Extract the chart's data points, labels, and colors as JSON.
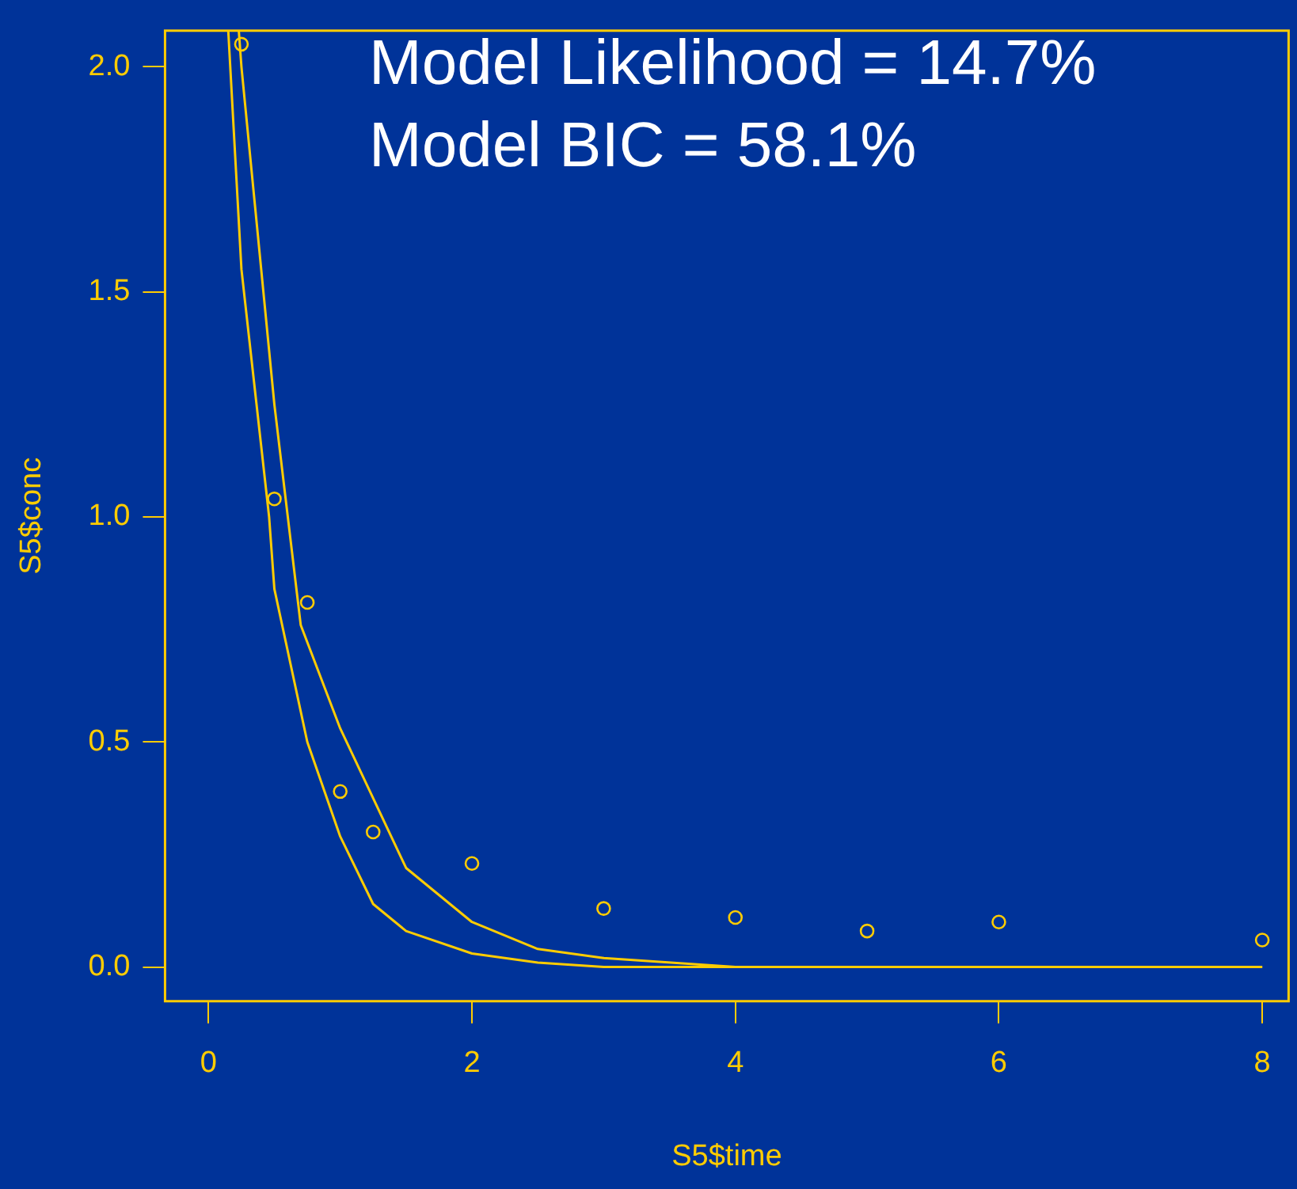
{
  "chart_data": {
    "type": "scatter",
    "xlabel": "S5$time",
    "ylabel": "S5$conc",
    "annotations": [
      "Model Likelihood = 14.7%",
      "Model BIC = 58.1%"
    ],
    "xlim": [
      -0.33,
      8.2
    ],
    "ylim": [
      -0.076,
      2.08
    ],
    "xticks": [
      0,
      2,
      4,
      6,
      8
    ],
    "yticks": [
      {
        "value": 0,
        "label": "0.0"
      },
      0.5,
      {
        "value": 1,
        "label": "1.0"
      },
      1.5,
      {
        "value": 2,
        "label": "2.0"
      }
    ],
    "grid": false,
    "legend": false,
    "series": [
      {
        "color": "#ffcc00",
        "marker": "circle",
        "x": [
          0.25,
          0.5,
          0.75,
          1,
          1.25,
          2,
          3,
          4,
          5,
          6,
          8
        ],
        "values": [
          2.05,
          1.04,
          0.81,
          0.39,
          0.3,
          0.23,
          0.13,
          0.11,
          0.08,
          0.1,
          0.06
        ]
      },
      {
        "type": "line",
        "color": "#ffcc00",
        "marker": "none",
        "x": [
          0.23,
          0.25,
          0.5,
          0.7,
          1,
          1.5,
          2,
          2.5,
          3,
          4,
          8
        ],
        "values": [
          2.08,
          2.0,
          1.25,
          0.76,
          0.53,
          0.22,
          0.1,
          0.04,
          0.02,
          0,
          0
        ]
      },
      {
        "type": "line",
        "color": "#ffcc00",
        "marker": "none",
        "x": [
          0.15,
          0.25,
          0.46,
          0.5,
          0.75,
          1,
          1.25,
          1.5,
          2,
          2.5,
          3,
          8
        ],
        "values": [
          2.08,
          1.55,
          1.0,
          0.84,
          0.5,
          0.29,
          0.14,
          0.08,
          0.03,
          0.01,
          0,
          0
        ]
      }
    ]
  }
}
